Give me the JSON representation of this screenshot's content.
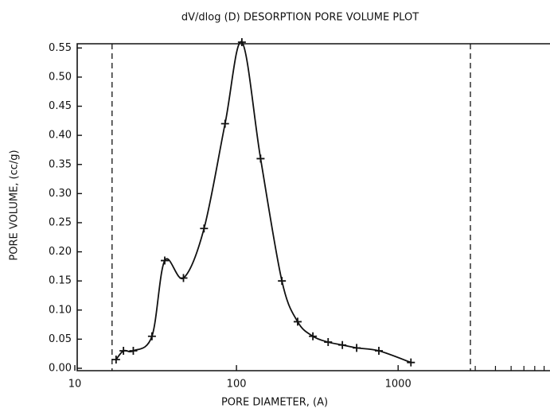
{
  "chart_data": {
    "type": "line",
    "title": "dV/dlog (D) DESORPTION PORE VOLUME PLOT",
    "x_label": "PORE DIAMETER, (A)",
    "y_label": "PORE VOLUME, (cc/g)",
    "x_scale": "log",
    "xlim": [
      10,
      8700
    ],
    "ylim": [
      0,
      0.56
    ],
    "xticks": [
      10,
      100,
      1000
    ],
    "xminor_ticks": [
      3000,
      4000,
      5000,
      6000,
      7000,
      8000
    ],
    "yticks": [
      {
        "value": 0,
        "label": "0.00"
      },
      {
        "value": 0.05,
        "label": "0.05"
      },
      {
        "value": 0.1,
        "label": "0.10"
      },
      {
        "value": 0.15,
        "label": "0.15"
      },
      {
        "value": 0.2,
        "label": "0.20"
      },
      {
        "value": 0.25,
        "label": "0.25"
      },
      {
        "value": 0.3,
        "label": "0.30"
      },
      {
        "value": 0.35,
        "label": "0.35"
      },
      {
        "value": 0.4,
        "label": "0.40"
      },
      {
        "value": 0.45,
        "label": "0.45"
      },
      {
        "value": 0.5,
        "label": "0.50"
      },
      {
        "value": 0.55,
        "label": "0.55"
      }
    ],
    "vlines": [
      17,
      2800
    ],
    "color": "#111111",
    "x": [
      18,
      20,
      23,
      30,
      36,
      47,
      63,
      85,
      108,
      141,
      191,
      239,
      297,
      369,
      452,
      554,
      760,
      1200
    ],
    "values": [
      0.015,
      0.03,
      0.03,
      0.055,
      0.185,
      0.155,
      0.24,
      0.42,
      0.56,
      0.36,
      0.15,
      0.08,
      0.055,
      0.045,
      0.04,
      0.035,
      0.03,
      0.01
    ]
  }
}
